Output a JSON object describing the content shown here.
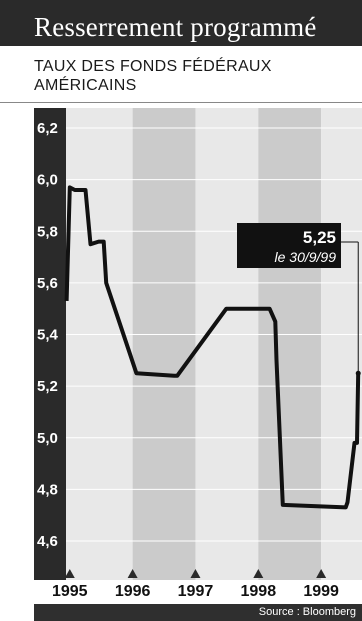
{
  "header": {
    "title": "Resserrement programmé",
    "subtitle": "TAUX DES FONDS FÉDÉRAUX AMÉRICAINS"
  },
  "callout": {
    "value": "5,25",
    "date": "le 30/9/99"
  },
  "source": "Source : Bloomberg",
  "colors": {
    "dark": "#2a2a2a",
    "band_light": "#e8e8e8",
    "band_dark": "#cbcbcb",
    "line": "#111111"
  },
  "chart_data": {
    "type": "line",
    "title": "",
    "xlabel": "",
    "ylabel": "",
    "ylim": [
      4.6,
      6.2
    ],
    "xlim": [
      1994.94,
      1999.65
    ],
    "yticks": [
      6.2,
      6.0,
      5.8,
      5.6,
      5.4,
      5.2,
      5.0,
      4.8,
      4.6
    ],
    "ytick_labels": [
      "6,2",
      "6,0",
      "5,8",
      "5,6",
      "5,4",
      "5,2",
      "5,0",
      "4,8",
      "4,6"
    ],
    "xticks": [
      1995,
      1996,
      1997,
      1998,
      1999
    ],
    "xtick_labels": [
      "1995",
      "1996",
      "1997",
      "1998",
      "1999"
    ],
    "x": [
      1994.95,
      1995.0,
      1995.08,
      1995.25,
      1995.33,
      1995.46,
      1995.54,
      1995.58,
      1996.06,
      1996.66,
      1996.71,
      1997.49,
      1997.62,
      1998.18,
      1998.27,
      1998.29,
      1998.39,
      1999.39,
      1999.42,
      1999.53,
      1999.57,
      1999.59
    ],
    "values": [
      5.53,
      5.97,
      5.96,
      5.96,
      5.75,
      5.76,
      5.76,
      5.6,
      5.25,
      5.24,
      5.24,
      5.5,
      5.5,
      5.5,
      5.45,
      5.3,
      4.74,
      4.73,
      4.75,
      4.98,
      4.98,
      5.25
    ]
  }
}
